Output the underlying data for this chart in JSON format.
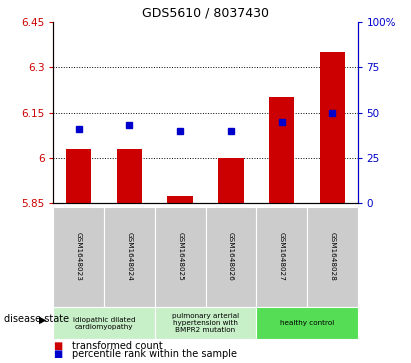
{
  "title": "GDS5610 / 8037430",
  "samples": [
    "GSM1648023",
    "GSM1648024",
    "GSM1648025",
    "GSM1648026",
    "GSM1648027",
    "GSM1648028"
  ],
  "transformed_count": [
    6.03,
    6.03,
    5.875,
    6.0,
    6.2,
    6.35
  ],
  "percentile_rank": [
    41,
    43,
    40,
    40,
    45,
    50
  ],
  "ylim_left": [
    5.85,
    6.45
  ],
  "ylim_right": [
    0,
    100
  ],
  "yticks_left": [
    5.85,
    6.0,
    6.15,
    6.3,
    6.45
  ],
  "yticks_right": [
    0,
    25,
    50,
    75,
    100
  ],
  "ytick_labels_left": [
    "5.85",
    "6",
    "6.15",
    "6.3",
    "6.45"
  ],
  "ytick_labels_right": [
    "0",
    "25",
    "50",
    "75",
    "100%"
  ],
  "bar_color": "#cc0000",
  "dot_color": "#0000cc",
  "bar_bottom": 5.85,
  "grid_lines": [
    6.0,
    6.15,
    6.3
  ],
  "disease_groups": [
    {
      "label": "idiopathic dilated\ncardiomyopathy",
      "start": 0,
      "end": 1,
      "color": "#c8f0c8"
    },
    {
      "label": "pulmonary arterial\nhypertension with\nBMPR2 mutation",
      "start": 2,
      "end": 3,
      "color": "#c8f0c8"
    },
    {
      "label": "healthy control",
      "start": 4,
      "end": 5,
      "color": "#55dd55"
    }
  ],
  "disease_state_label": "disease state",
  "legend_red_label": "transformed count",
  "legend_blue_label": "percentile rank within the sample",
  "bar_color_hex": "#cc0000",
  "dot_color_hex": "#0000cc",
  "sample_box_color": "#cccccc",
  "group_light_color": "#c8f0c8",
  "group_dark_color": "#55dd55"
}
